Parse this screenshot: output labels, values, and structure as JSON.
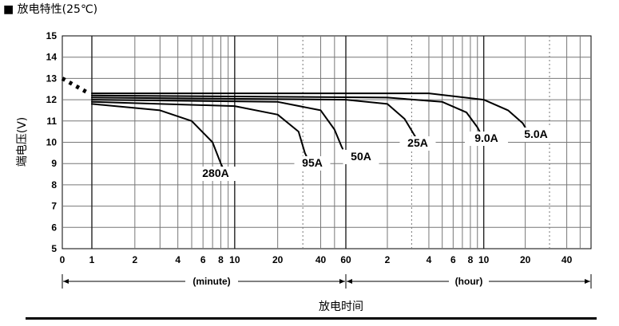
{
  "chart_data": {
    "type": "line",
    "title": "■ 放电特性(25℃)",
    "xlabel": "放电时间",
    "ylabel": "端电压(V)",
    "ylim": [
      5,
      15
    ],
    "yticks": [
      "5",
      "6",
      "7",
      "8",
      "9",
      "10",
      "11",
      "12",
      "13",
      "14",
      "15"
    ],
    "xticks_minute": [
      "0",
      "1",
      "2",
      "4",
      "6",
      "8",
      "10",
      "20",
      "40",
      "60"
    ],
    "xticks_hour": [
      "2",
      "4",
      "6",
      "8",
      "10",
      "20",
      "40"
    ],
    "xscale": "log (minutes 1–60, then hours 1–60)",
    "x_unit_minute": "(minute)",
    "x_unit_hour": "(hour)",
    "grid": true,
    "series": [
      {
        "name": "280A",
        "points": [
          [
            1,
            11.8
          ],
          [
            3,
            11.5
          ],
          [
            5,
            11.0
          ],
          [
            7,
            10.0
          ],
          [
            8,
            9.0
          ],
          [
            8.4,
            8.7
          ]
        ]
      },
      {
        "name": "95A",
        "points": [
          [
            1,
            11.9
          ],
          [
            10,
            11.7
          ],
          [
            20,
            11.3
          ],
          [
            28,
            10.5
          ],
          [
            31,
            9.5
          ],
          [
            32,
            9.3
          ]
        ]
      },
      {
        "name": "50A",
        "points": [
          [
            1,
            12.0
          ],
          [
            20,
            11.9
          ],
          [
            40,
            11.5
          ],
          [
            50,
            10.6
          ],
          [
            56,
            9.8
          ],
          [
            57,
            9.7
          ]
        ]
      },
      {
        "name": "25A",
        "points": [
          [
            1,
            12.1
          ],
          [
            60,
            12.0
          ],
          [
            120,
            11.8
          ],
          [
            160,
            11.1
          ],
          [
            190,
            10.3
          ],
          [
            200,
            10.0
          ]
        ]
      },
      {
        "name": "9.0A",
        "points": [
          [
            1,
            12.2
          ],
          [
            120,
            12.1
          ],
          [
            300,
            11.9
          ],
          [
            450,
            11.4
          ],
          [
            540,
            10.7
          ],
          [
            560,
            10.5
          ]
        ]
      },
      {
        "name": "5.0A",
        "points": [
          [
            1,
            12.3
          ],
          [
            240,
            12.3
          ],
          [
            600,
            12.0
          ],
          [
            900,
            11.5
          ],
          [
            1150,
            10.9
          ],
          [
            1200,
            10.7
          ]
        ]
      }
    ]
  }
}
